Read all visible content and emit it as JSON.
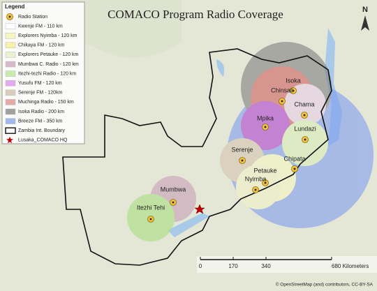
{
  "title": "COMACO Program Radio Coverage",
  "north": "N",
  "legend": {
    "title": "Legend",
    "items": [
      {
        "label": "Radio Station",
        "kind": "station"
      },
      {
        "label": "Kwenje FM - 110 km",
        "color": "#ffffff"
      },
      {
        "label": "Explorers Nyimba - 120 km",
        "color": "#f4f7c0"
      },
      {
        "label": "Chikaya FM - 120 km",
        "color": "#f7f2a8"
      },
      {
        "label": "Explorers Petauke - 120 km",
        "color": "#eef0d2"
      },
      {
        "label": "Mumbwa C. Radio - 120 km",
        "color": "#d7b9c9"
      },
      {
        "label": "Itezhi-tezhi Radio - 120 km",
        "color": "#c8ecb0"
      },
      {
        "label": "Yusufu FM - 120 km",
        "color": "#e3a8f0"
      },
      {
        "label": "Serenje FM - 120km",
        "color": "#d8ccbc"
      },
      {
        "label": "Muchinga Radio - 150 km",
        "color": "#e8a8a8"
      },
      {
        "label": "Isoka Radio - 200 km",
        "color": "#a0a0a0"
      },
      {
        "label": "Breeze FM - 350 km",
        "color": "#9fb8ee"
      },
      {
        "label": "Zambia Int. Boundary",
        "kind": "boundary"
      },
      {
        "label": "Lusaka_COMACO HQ",
        "kind": "hq"
      }
    ]
  },
  "places": [
    "Isoka",
    "Chinsali",
    "Chama",
    "Mpika",
    "Lundazi",
    "Serenje",
    "Chipata",
    "Petauke",
    "Nyimba",
    "Mumbwa",
    "Itezhi Tehi"
  ],
  "scale": {
    "ticks": [
      0,
      170,
      340,
      {
        "value": 680,
        "label": "680 Kilometers"
      }
    ]
  },
  "attribution": "© OpenStreetMap (and) contributors, CC-BY-SA"
}
